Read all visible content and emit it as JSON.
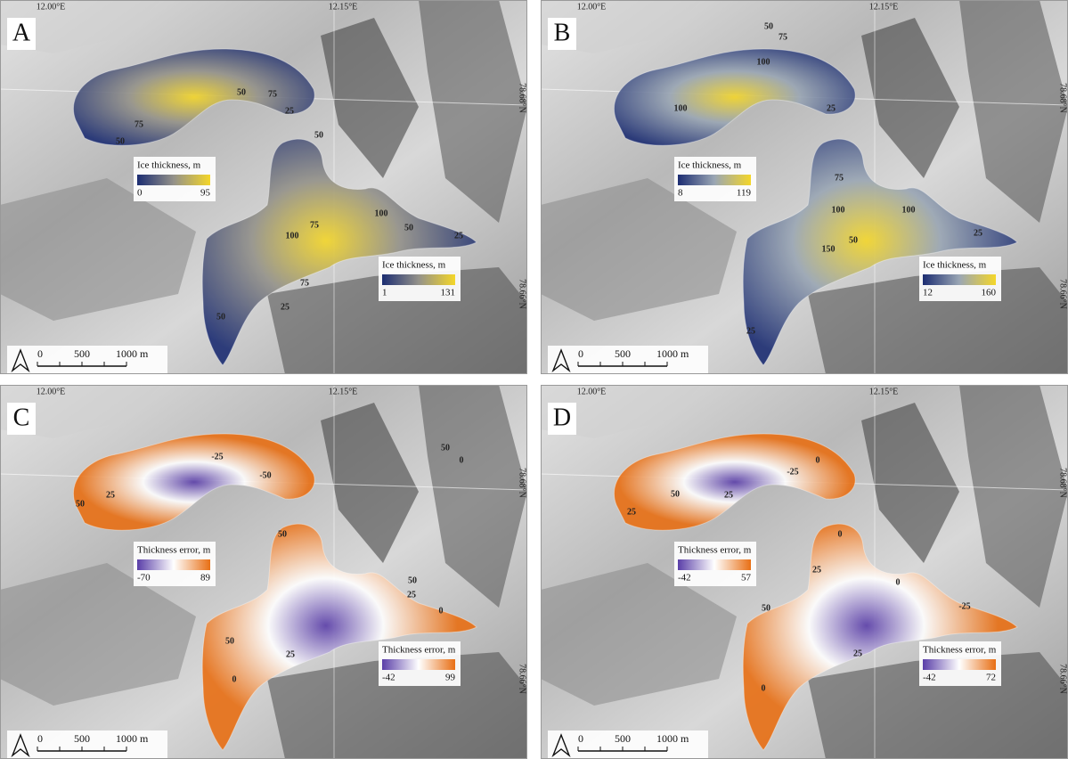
{
  "panels": [
    {
      "letter": "A",
      "lon_labels": [
        "12.00°E",
        "12.15°E"
      ],
      "lat_labels": [
        "78.68°N",
        "78.66°N"
      ],
      "legends": [
        {
          "title": "Ice thickness,  m",
          "min": 0,
          "max": 95,
          "colors": [
            "#1c2d72",
            "#94928a",
            "#f4d629"
          ]
        },
        {
          "title": "Ice thickness,  m",
          "min": 1,
          "max": 131,
          "colors": [
            "#1c2d72",
            "#94928a",
            "#f4d629"
          ]
        }
      ],
      "contours": [
        50,
        75,
        25,
        75,
        50,
        50,
        75,
        100,
        100,
        50,
        25,
        75,
        25,
        50
      ],
      "scale": [
        "0",
        "500",
        "1000 m"
      ]
    },
    {
      "letter": "B",
      "lon_labels": [
        "12.00°E",
        "12.15°E"
      ],
      "lat_labels": [
        "78.68°N",
        "78.66°N"
      ],
      "legends": [
        {
          "title": "Ice thickness,  m",
          "min": 8,
          "max": 119,
          "colors": [
            "#1c2d72",
            "#9aa6b4",
            "#f4d629"
          ]
        },
        {
          "title": "Ice thickness,  m",
          "min": 12,
          "max": 160,
          "colors": [
            "#1c2d72",
            "#9aa6b4",
            "#f4d629"
          ]
        }
      ],
      "contours": [
        50,
        75,
        100,
        25,
        100,
        75,
        100,
        100,
        50,
        150,
        25,
        25
      ],
      "scale": [
        "0",
        "500",
        "1000 m"
      ]
    },
    {
      "letter": "C",
      "lon_labels": [
        "12.00°E",
        "12.15°E"
      ],
      "lat_labels": [
        "78.68°N",
        "78.66°N"
      ],
      "legends": [
        {
          "title": "Thickness error,  m",
          "min": -70,
          "max": 89,
          "colors": [
            "#5a3ea8",
            "#ffffff",
            "#e86f14"
          ]
        },
        {
          "title": "Thickness error,  m",
          "min": -42,
          "max": 99,
          "colors": [
            "#5a3ea8",
            "#ffffff",
            "#e86f14"
          ]
        }
      ],
      "contours": [
        50,
        0,
        -25,
        -50,
        25,
        50,
        50,
        50,
        25,
        0,
        50,
        25,
        0
      ],
      "scale": [
        "0",
        "500",
        "1000 m"
      ]
    },
    {
      "letter": "D",
      "lon_labels": [
        "12.00°E",
        "12.15°E"
      ],
      "lat_labels": [
        "78.68°N",
        "78.66°N"
      ],
      "legends": [
        {
          "title": "Thickness error,  m",
          "min": -42,
          "max": 57,
          "colors": [
            "#5a3ea8",
            "#ffffff",
            "#e86f14"
          ]
        },
        {
          "title": "Thickness error,  m",
          "min": -42,
          "max": 72,
          "colors": [
            "#5a3ea8",
            "#ffffff",
            "#e86f14"
          ]
        }
      ],
      "contours": [
        0,
        -25,
        25,
        50,
        25,
        0,
        25,
        0,
        50,
        -25,
        25,
        0
      ],
      "scale": [
        "0",
        "500",
        "1000 m"
      ]
    }
  ]
}
